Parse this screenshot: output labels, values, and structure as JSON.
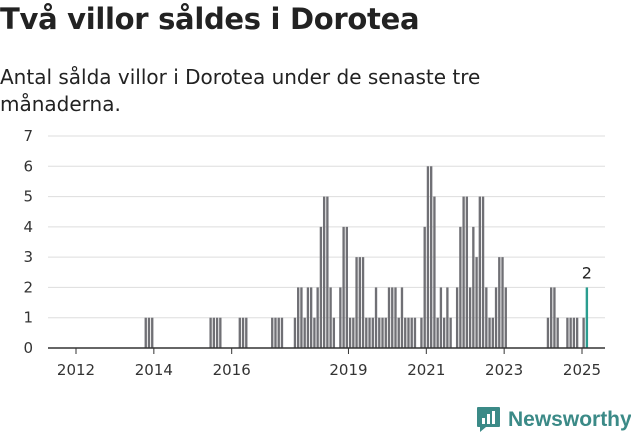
{
  "header": {
    "title": "Två villor såldes i Dorotea",
    "subtitle": "Antal sålda villor i Dorotea under de senaste tre månaderna."
  },
  "colors": {
    "bar": "#707075",
    "highlight": "#2a9d8f",
    "grid": "#dddddd",
    "axis": "#333333",
    "brand": "#3b8a87"
  },
  "brand": {
    "name": "Newsworthy",
    "icon": "bar-chart-logo-icon"
  },
  "chart_data": {
    "type": "bar",
    "title": "",
    "xlabel": "",
    "ylabel": "",
    "ylim": [
      0,
      7
    ],
    "yticks": [
      0,
      1,
      2,
      3,
      4,
      5,
      6,
      7
    ],
    "xticks": [
      "2012",
      "2014",
      "2016",
      "2019",
      "2021",
      "2023",
      "2025"
    ],
    "grid": true,
    "x_start": "2011-01",
    "x_end": "2025-07",
    "categories": [
      "2013-10",
      "2013-11",
      "2013-12",
      "2015-06",
      "2015-07",
      "2015-08",
      "2015-09",
      "2016-03",
      "2016-04",
      "2016-05",
      "2017-01",
      "2017-02",
      "2017-03",
      "2017-04",
      "2017-08",
      "2017-09",
      "2017-10",
      "2017-11",
      "2017-12",
      "2018-01",
      "2018-02",
      "2018-03",
      "2018-04",
      "2018-05",
      "2018-06",
      "2018-07",
      "2018-08",
      "2018-10",
      "2018-11",
      "2018-12",
      "2019-01",
      "2019-02",
      "2019-03",
      "2019-04",
      "2019-05",
      "2019-06",
      "2019-07",
      "2019-08",
      "2019-09",
      "2019-10",
      "2019-11",
      "2019-12",
      "2020-01",
      "2020-02",
      "2020-03",
      "2020-04",
      "2020-05",
      "2020-06",
      "2020-07",
      "2020-08",
      "2020-09",
      "2020-11",
      "2020-12",
      "2021-01",
      "2021-02",
      "2021-03",
      "2021-04",
      "2021-05",
      "2021-06",
      "2021-07",
      "2021-08",
      "2021-10",
      "2021-11",
      "2021-12",
      "2022-01",
      "2022-02",
      "2022-03",
      "2022-04",
      "2022-05",
      "2022-06",
      "2022-07",
      "2022-08",
      "2022-09",
      "2022-10",
      "2022-11",
      "2022-12",
      "2023-01",
      "2024-02",
      "2024-03",
      "2024-04",
      "2024-05",
      "2024-08",
      "2024-09",
      "2024-10",
      "2024-11",
      "2025-01",
      "2025-02"
    ],
    "values": [
      1,
      1,
      1,
      1,
      1,
      1,
      1,
      1,
      1,
      1,
      1,
      1,
      1,
      1,
      1,
      2,
      2,
      1,
      2,
      2,
      1,
      2,
      4,
      5,
      5,
      2,
      1,
      2,
      4,
      4,
      1,
      1,
      3,
      3,
      3,
      1,
      1,
      1,
      2,
      1,
      1,
      1,
      2,
      2,
      2,
      1,
      2,
      1,
      1,
      1,
      1,
      1,
      4,
      6,
      6,
      5,
      1,
      2,
      1,
      2,
      1,
      2,
      4,
      5,
      5,
      2,
      4,
      3,
      5,
      5,
      2,
      1,
      1,
      2,
      3,
      3,
      2,
      1,
      2,
      2,
      1,
      1,
      1,
      1,
      1,
      1,
      2
    ],
    "highlight": {
      "category": "2025-02",
      "value": 2,
      "label": "2"
    }
  }
}
